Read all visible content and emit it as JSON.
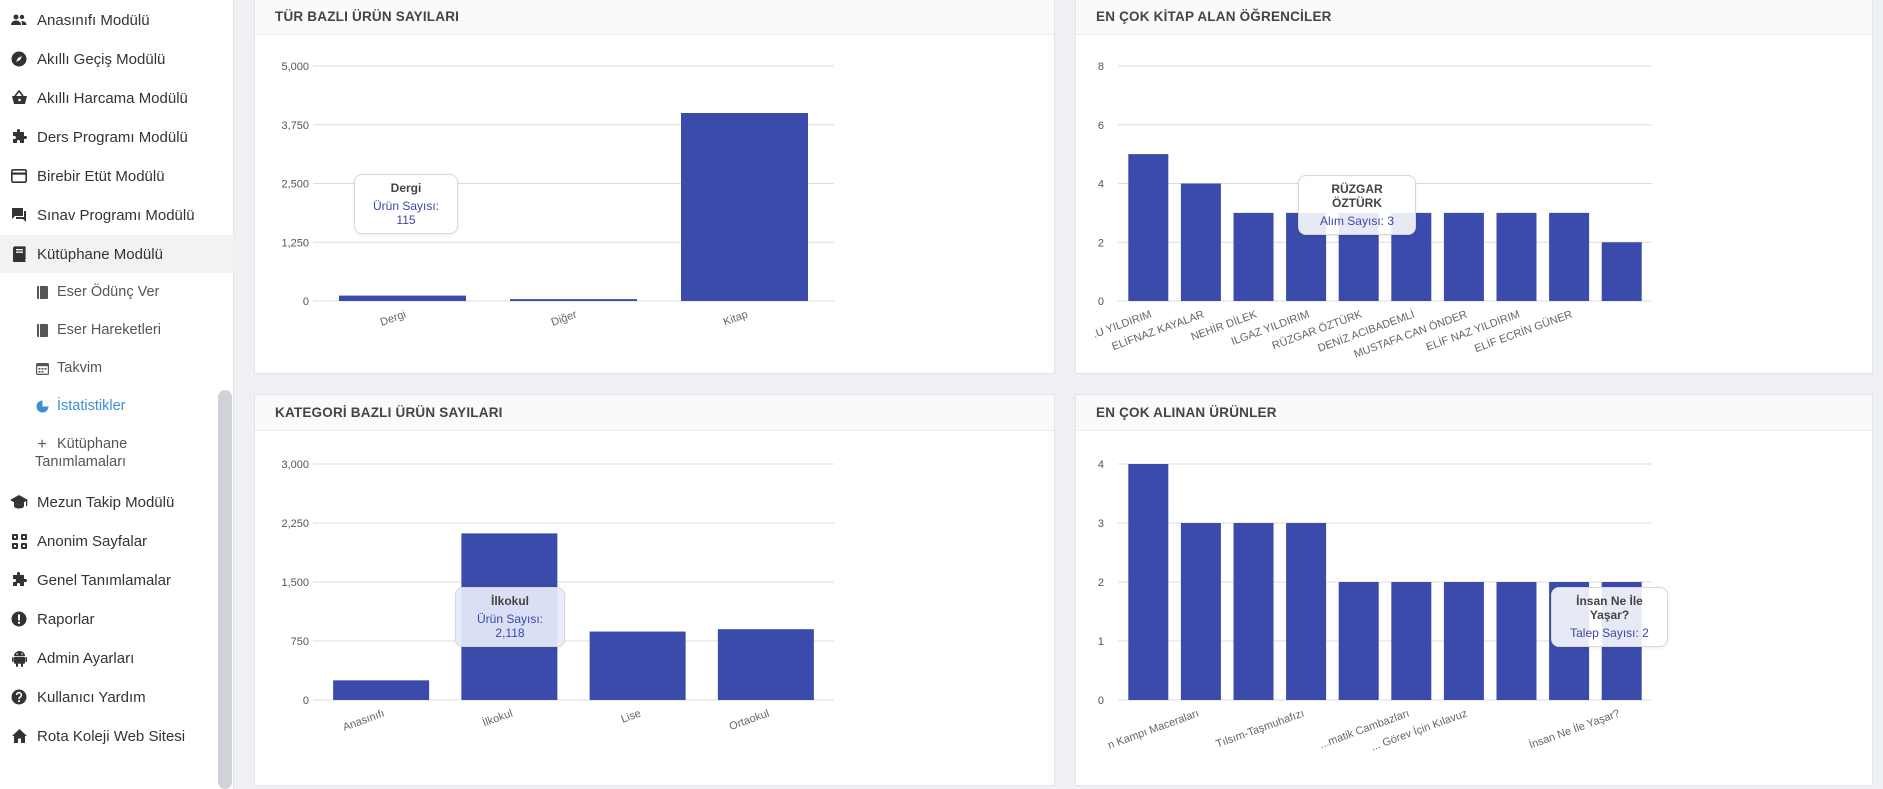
{
  "sidebar": {
    "items": [
      {
        "label": "Anasınıfı Modülü",
        "icon": "people-icon"
      },
      {
        "label": "Akıllı Geçiş Modülü",
        "icon": "compass-icon"
      },
      {
        "label": "Akıllı Harcama Modülü",
        "icon": "basket-icon"
      },
      {
        "label": "Ders Programı Modülü",
        "icon": "puzzle-icon"
      },
      {
        "label": "Birebir Etüt Modülü",
        "icon": "card-icon"
      },
      {
        "label": "Sınav Programı Modülü",
        "icon": "chat-icon"
      },
      {
        "label": "Kütüphane Modülü",
        "icon": "book-icon"
      },
      {
        "label": "Mezun Takip Modülü",
        "icon": "graduation-cap-icon"
      },
      {
        "label": "Anonim Sayfalar",
        "icon": "apps-icon"
      },
      {
        "label": "Genel Tanımlamalar",
        "icon": "extension-icon"
      },
      {
        "label": "Raporlar",
        "icon": "alert-circle-icon"
      },
      {
        "label": "Admin Ayarları",
        "icon": "android-icon"
      },
      {
        "label": "Kullanıcı Yardım",
        "icon": "help-circle-icon"
      },
      {
        "label": "Rota Koleji Web Sitesi",
        "icon": "home-icon"
      }
    ],
    "sub_items": [
      {
        "label": "Eser Ödünç Ver",
        "icon": "book-small-icon"
      },
      {
        "label": "Eser Hareketleri",
        "icon": "book-small-icon"
      },
      {
        "label": "Takvim",
        "icon": "calendar-icon"
      },
      {
        "label": "İstatistikler",
        "icon": "pie-chart-icon"
      },
      {
        "label_line1": "Kütüphane",
        "label_line2": "Tanımlamaları",
        "icon": "plus-icon"
      }
    ]
  },
  "accent_color": "#3a4bab",
  "chart_data": [
    {
      "type": "bar",
      "title": "TÜR BAZLI ÜRÜN SAYILARI",
      "categories": [
        "Dergi",
        "Diğer",
        "Kitap"
      ],
      "values": [
        115,
        40,
        4000
      ],
      "ylim": [
        0,
        5000
      ],
      "yticks": [
        "0",
        "1,250",
        "2,500",
        "3,750",
        "5,000"
      ],
      "tooltip": {
        "title": "Dergi",
        "label": "Ürün Sayısı: ",
        "value": "115"
      }
    },
    {
      "type": "bar",
      "title": "EN ÇOK KİTAP ALAN ÖĞRENCİLER",
      "categories": [
        ".U YILDIRIM",
        "ELİFNAZ KAYALAR",
        "NEHİR DİLEK",
        "ILGAZ YILDIRIM",
        "RÜZGAR ÖZTÜRK",
        "DENİZ ACIBADEMLİ",
        "MUSTAFA CAN ÖNDER",
        "ELİF NAZ YILDIRIM",
        "ELİF ECRİN GÜNER",
        ""
      ],
      "values": [
        5,
        4,
        3,
        3,
        3,
        3,
        3,
        3,
        3,
        2
      ],
      "ylim": [
        0,
        8
      ],
      "yticks": [
        "0",
        "2",
        "4",
        "6",
        "8"
      ],
      "tooltip": {
        "title": "RÜZGAR ÖZTÜRK",
        "label": "Alım Sayısı: ",
        "value": "3"
      }
    },
    {
      "type": "bar",
      "title": "KATEGORİ BAZLI ÜRÜN SAYILARI",
      "categories": [
        "Anasınıfı",
        "İlkokul",
        "Lise",
        "Ortaokul"
      ],
      "values": [
        250,
        2118,
        870,
        900
      ],
      "ylim": [
        0,
        3000
      ],
      "yticks": [
        "0",
        "750",
        "1,500",
        "2,250",
        "3,000"
      ],
      "tooltip": {
        "title": "İlkokul",
        "label": "Ürün Sayısı: ",
        "value": "2,118"
      }
    },
    {
      "type": "bar",
      "title": "EN ÇOK ALINAN ÜRÜNLER",
      "categories": [
        "...Kampı Maceraları",
        "",
        "Tılsım-Taşmuhafızı",
        "",
        "Matematik Cambazları",
        "Görev İçin Kılavuz",
        "",
        "İnsan Ne İle Yaşar?",
        "",
        ""
      ],
      "labels_shown": [
        "n Kampı Maceraları",
        "Tılsım-Taşmuhafızı",
        "...matik Cambazları",
        "... Görev İçin Kılavuz",
        "İnsan Ne İle Yaşar?"
      ],
      "values": [
        4,
        3,
        3,
        3,
        2,
        2,
        2,
        2,
        2,
        2
      ],
      "ylim": [
        0,
        4
      ],
      "yticks": [
        "0",
        "1",
        "2",
        "3",
        "4"
      ],
      "tooltip": {
        "title": "İnsan Ne İle Yaşar?",
        "label": "Talep Sayısı: ",
        "value": "2"
      }
    }
  ]
}
